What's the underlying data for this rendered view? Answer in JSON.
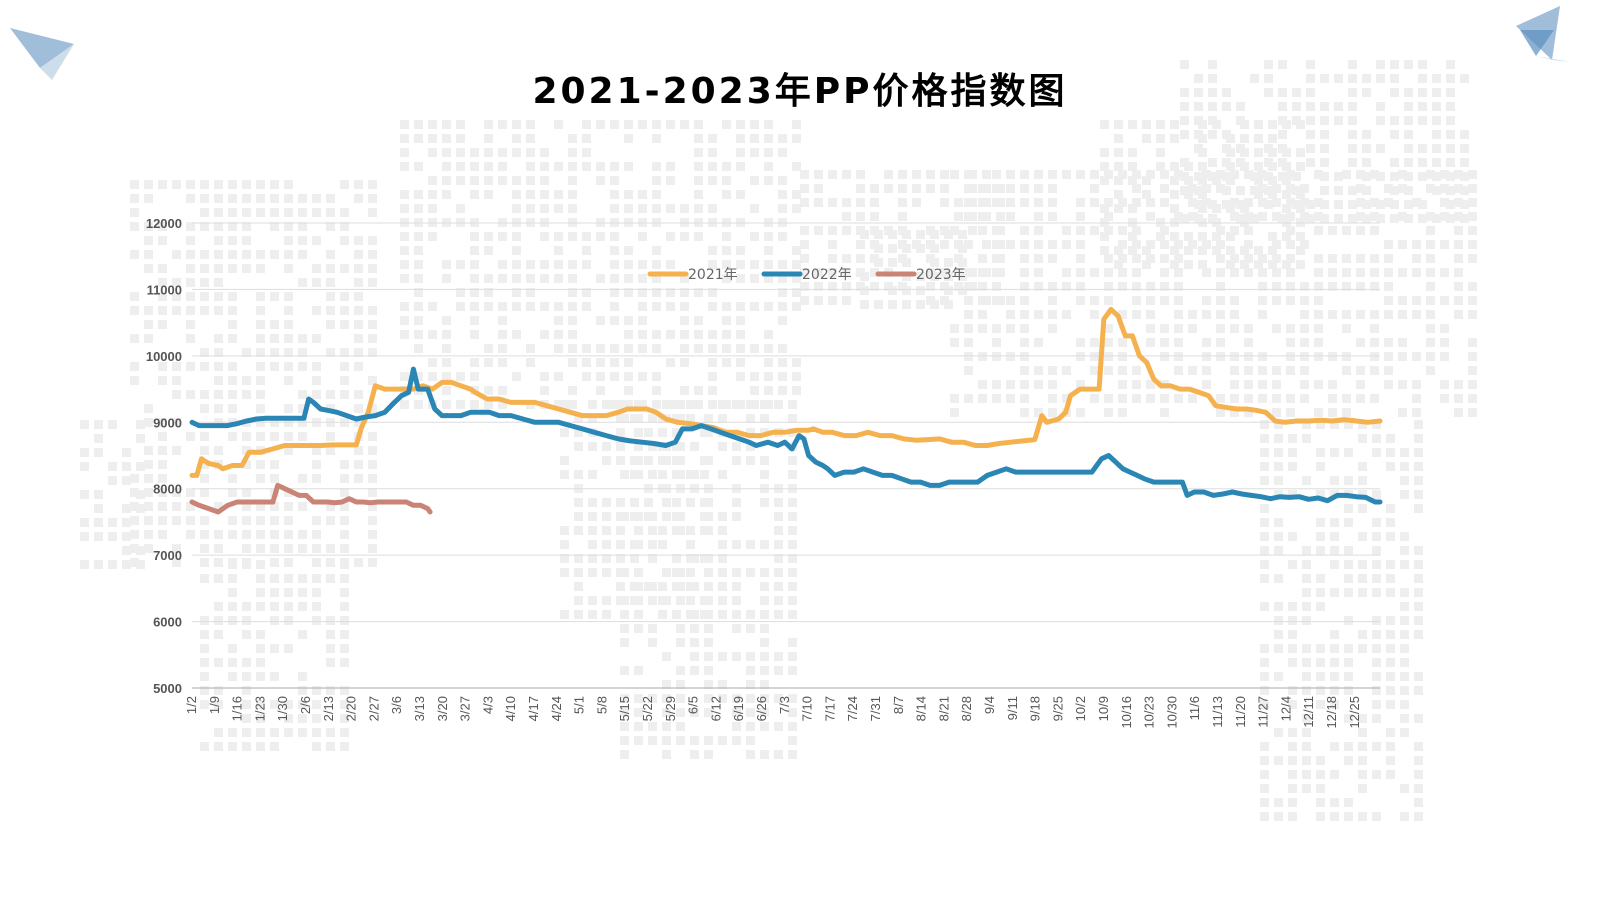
{
  "decor": {
    "left_plane_icon": "paper-plane-icon",
    "right_plane_icon": "paper-plane-icon",
    "background": "dotted-world-map"
  },
  "colors": {
    "s2021": "#F5B14E",
    "s2022": "#2A86B4",
    "s2023": "#C98476",
    "grid": "#DDDDDD",
    "axis": "#AAAAAA"
  },
  "chart_data": {
    "type": "line",
    "title": "2021-2023年PP价格指数图",
    "x_ticks": [
      "1/2",
      "1/9",
      "1/16",
      "1/23",
      "1/30",
      "2/6",
      "2/13",
      "2/20",
      "2/27",
      "3/6",
      "3/13",
      "3/20",
      "3/27",
      "4/3",
      "4/10",
      "4/17",
      "4/24",
      "5/1",
      "5/8",
      "5/15",
      "5/22",
      "5/29",
      "6/5",
      "6/12",
      "6/19",
      "6/26",
      "7/3",
      "7/10",
      "7/17",
      "7/24",
      "7/31",
      "8/7",
      "8/14",
      "8/21",
      "8/28",
      "9/4",
      "9/11",
      "9/18",
      "9/25",
      "10/2",
      "10/9",
      "10/16",
      "10/23",
      "10/30",
      "11/6",
      "11/13",
      "11/20",
      "11/27",
      "12/4",
      "12/11",
      "12/18",
      "12/25"
    ],
    "y_ticks": [
      "5000",
      "6000",
      "7000",
      "8000",
      "9000",
      "10000",
      "11000",
      "12000"
    ],
    "ylim": [
      5000,
      12000
    ],
    "grid": true,
    "legend": "top",
    "series": [
      {
        "name": "2021年",
        "color": "#F5B14E",
        "points": [
          [
            1,
            8200
          ],
          [
            3,
            8200
          ],
          [
            5,
            8450
          ],
          [
            8,
            8380
          ],
          [
            12,
            8350
          ],
          [
            14,
            8300
          ],
          [
            18,
            8350
          ],
          [
            22,
            8350
          ],
          [
            25,
            8550
          ],
          [
            30,
            8550
          ],
          [
            35,
            8600
          ],
          [
            40,
            8650
          ],
          [
            45,
            8650
          ],
          [
            50,
            8650
          ],
          [
            55,
            8650
          ],
          [
            60,
            8660
          ],
          [
            65,
            8660
          ],
          [
            70,
            8660
          ],
          [
            72,
            8900
          ],
          [
            75,
            9150
          ],
          [
            78,
            9550
          ],
          [
            82,
            9500
          ],
          [
            86,
            9500
          ],
          [
            90,
            9500
          ],
          [
            94,
            9500
          ],
          [
            98,
            9550
          ],
          [
            102,
            9500
          ],
          [
            106,
            9600
          ],
          [
            110,
            9600
          ],
          [
            114,
            9550
          ],
          [
            118,
            9500
          ],
          [
            120,
            9450
          ],
          [
            125,
            9350
          ],
          [
            130,
            9350
          ],
          [
            135,
            9300
          ],
          [
            140,
            9300
          ],
          [
            145,
            9300
          ],
          [
            150,
            9250
          ],
          [
            155,
            9200
          ],
          [
            160,
            9150
          ],
          [
            165,
            9100
          ],
          [
            170,
            9100
          ],
          [
            175,
            9100
          ],
          [
            180,
            9150
          ],
          [
            184,
            9200
          ],
          [
            188,
            9200
          ],
          [
            192,
            9200
          ],
          [
            196,
            9150
          ],
          [
            200,
            9050
          ],
          [
            205,
            9000
          ],
          [
            210,
            8980
          ],
          [
            215,
            8950
          ],
          [
            220,
            8920
          ],
          [
            225,
            8850
          ],
          [
            230,
            8850
          ],
          [
            235,
            8800
          ],
          [
            240,
            8800
          ],
          [
            245,
            8850
          ],
          [
            250,
            8850
          ],
          [
            255,
            8880
          ],
          [
            260,
            8880
          ],
          [
            262,
            8900
          ],
          [
            266,
            8850
          ],
          [
            270,
            8850
          ],
          [
            275,
            8800
          ],
          [
            280,
            8800
          ],
          [
            285,
            8850
          ],
          [
            290,
            8800
          ],
          [
            295,
            8800
          ],
          [
            300,
            8750
          ],
          [
            305,
            8730
          ],
          [
            310,
            8740
          ],
          [
            315,
            8750
          ],
          [
            320,
            8700
          ],
          [
            325,
            8700
          ],
          [
            330,
            8650
          ],
          [
            335,
            8650
          ],
          [
            340,
            8680
          ],
          [
            345,
            8700
          ],
          [
            350,
            8720
          ],
          [
            355,
            8740
          ],
          [
            358,
            9100
          ],
          [
            360,
            9000
          ],
          [
            365,
            9050
          ],
          [
            368,
            9150
          ],
          [
            370,
            9400
          ],
          [
            374,
            9500
          ],
          [
            378,
            9500
          ],
          [
            382,
            9500
          ],
          [
            384,
            10550
          ],
          [
            387,
            10700
          ],
          [
            390,
            10600
          ],
          [
            393,
            10300
          ],
          [
            396,
            10300
          ],
          [
            399,
            10000
          ],
          [
            402,
            9900
          ],
          [
            405,
            9650
          ],
          [
            408,
            9550
          ],
          [
            412,
            9550
          ],
          [
            416,
            9500
          ],
          [
            420,
            9500
          ],
          [
            424,
            9450
          ],
          [
            428,
            9400
          ],
          [
            431,
            9250
          ],
          [
            436,
            9220
          ],
          [
            440,
            9200
          ],
          [
            444,
            9200
          ],
          [
            448,
            9180
          ],
          [
            452,
            9150
          ],
          [
            456,
            9020
          ],
          [
            460,
            9000
          ],
          [
            465,
            9020
          ],
          [
            470,
            9020
          ],
          [
            475,
            9030
          ],
          [
            480,
            9020
          ],
          [
            485,
            9040
          ],
          [
            490,
            9020
          ],
          [
            495,
            9000
          ],
          [
            500,
            9020
          ]
        ]
      },
      {
        "name": "2022年",
        "color": "#2A86B4",
        "points": [
          [
            1,
            9000
          ],
          [
            4,
            8950
          ],
          [
            8,
            8950
          ],
          [
            12,
            8950
          ],
          [
            16,
            8950
          ],
          [
            20,
            8980
          ],
          [
            24,
            9020
          ],
          [
            28,
            9050
          ],
          [
            32,
            9060
          ],
          [
            36,
            9060
          ],
          [
            40,
            9060
          ],
          [
            44,
            9060
          ],
          [
            48,
            9060
          ],
          [
            50,
            9350
          ],
          [
            52,
            9300
          ],
          [
            55,
            9200
          ],
          [
            58,
            9180
          ],
          [
            62,
            9150
          ],
          [
            66,
            9100
          ],
          [
            70,
            9050
          ],
          [
            74,
            9080
          ],
          [
            78,
            9100
          ],
          [
            82,
            9150
          ],
          [
            86,
            9300
          ],
          [
            89,
            9400
          ],
          [
            92,
            9450
          ],
          [
            94,
            9800
          ],
          [
            96,
            9500
          ],
          [
            98,
            9500
          ],
          [
            100,
            9500
          ],
          [
            103,
            9200
          ],
          [
            106,
            9100
          ],
          [
            110,
            9100
          ],
          [
            114,
            9100
          ],
          [
            118,
            9150
          ],
          [
            122,
            9150
          ],
          [
            126,
            9150
          ],
          [
            130,
            9100
          ],
          [
            135,
            9100
          ],
          [
            140,
            9050
          ],
          [
            145,
            9000
          ],
          [
            150,
            9000
          ],
          [
            155,
            9000
          ],
          [
            160,
            8950
          ],
          [
            165,
            8900
          ],
          [
            170,
            8850
          ],
          [
            175,
            8800
          ],
          [
            180,
            8750
          ],
          [
            185,
            8720
          ],
          [
            190,
            8700
          ],
          [
            195,
            8680
          ],
          [
            200,
            8650
          ],
          [
            204,
            8700
          ],
          [
            207,
            8900
          ],
          [
            211,
            8900
          ],
          [
            215,
            8950
          ],
          [
            219,
            8900
          ],
          [
            223,
            8850
          ],
          [
            227,
            8800
          ],
          [
            231,
            8750
          ],
          [
            235,
            8700
          ],
          [
            238,
            8650
          ],
          [
            243,
            8700
          ],
          [
            247,
            8650
          ],
          [
            250,
            8700
          ],
          [
            253,
            8600
          ],
          [
            256,
            8800
          ],
          [
            258,
            8750
          ],
          [
            260,
            8500
          ],
          [
            263,
            8400
          ],
          [
            266,
            8350
          ],
          [
            268,
            8300
          ],
          [
            271,
            8200
          ],
          [
            275,
            8250
          ],
          [
            279,
            8250
          ],
          [
            283,
            8300
          ],
          [
            287,
            8250
          ],
          [
            291,
            8200
          ],
          [
            295,
            8200
          ],
          [
            299,
            8150
          ],
          [
            303,
            8100
          ],
          [
            307,
            8100
          ],
          [
            311,
            8050
          ],
          [
            315,
            8050
          ],
          [
            319,
            8100
          ],
          [
            323,
            8100
          ],
          [
            327,
            8100
          ],
          [
            331,
            8100
          ],
          [
            335,
            8200
          ],
          [
            339,
            8250
          ],
          [
            343,
            8300
          ],
          [
            347,
            8250
          ],
          [
            351,
            8250
          ],
          [
            355,
            8250
          ],
          [
            359,
            8250
          ],
          [
            363,
            8250
          ],
          [
            367,
            8250
          ],
          [
            371,
            8250
          ],
          [
            375,
            8250
          ],
          [
            379,
            8250
          ],
          [
            383,
            8450
          ],
          [
            386,
            8500
          ],
          [
            389,
            8400
          ],
          [
            392,
            8300
          ],
          [
            395,
            8250
          ],
          [
            398,
            8200
          ],
          [
            401,
            8150
          ],
          [
            405,
            8100
          ],
          [
            409,
            8100
          ],
          [
            413,
            8100
          ],
          [
            417,
            8100
          ],
          [
            419,
            7900
          ],
          [
            422,
            7950
          ],
          [
            426,
            7950
          ],
          [
            430,
            7900
          ],
          [
            434,
            7920
          ],
          [
            438,
            7950
          ],
          [
            442,
            7920
          ],
          [
            446,
            7900
          ],
          [
            450,
            7880
          ],
          [
            454,
            7850
          ],
          [
            458,
            7880
          ],
          [
            462,
            7870
          ],
          [
            466,
            7880
          ],
          [
            470,
            7840
          ],
          [
            474,
            7860
          ],
          [
            478,
            7820
          ],
          [
            482,
            7900
          ],
          [
            486,
            7900
          ],
          [
            490,
            7880
          ],
          [
            494,
            7870
          ],
          [
            498,
            7800
          ],
          [
            500,
            7800
          ]
        ]
      },
      {
        "name": "2023年",
        "color": "#C98476",
        "points": [
          [
            1,
            7800
          ],
          [
            4,
            7750
          ],
          [
            8,
            7700
          ],
          [
            12,
            7650
          ],
          [
            16,
            7750
          ],
          [
            20,
            7800
          ],
          [
            24,
            7800
          ],
          [
            28,
            7800
          ],
          [
            32,
            7800
          ],
          [
            35,
            7800
          ],
          [
            37,
            8050
          ],
          [
            40,
            8000
          ],
          [
            43,
            7950
          ],
          [
            46,
            7900
          ],
          [
            49,
            7900
          ],
          [
            52,
            7800
          ],
          [
            55,
            7800
          ],
          [
            58,
            7800
          ],
          [
            61,
            7790
          ],
          [
            64,
            7800
          ],
          [
            67,
            7850
          ],
          [
            70,
            7800
          ],
          [
            73,
            7800
          ],
          [
            76,
            7790
          ],
          [
            79,
            7800
          ],
          [
            82,
            7800
          ],
          [
            85,
            7800
          ],
          [
            88,
            7800
          ],
          [
            91,
            7800
          ],
          [
            94,
            7750
          ],
          [
            97,
            7750
          ],
          [
            100,
            7700
          ],
          [
            101,
            7650
          ]
        ]
      }
    ]
  }
}
